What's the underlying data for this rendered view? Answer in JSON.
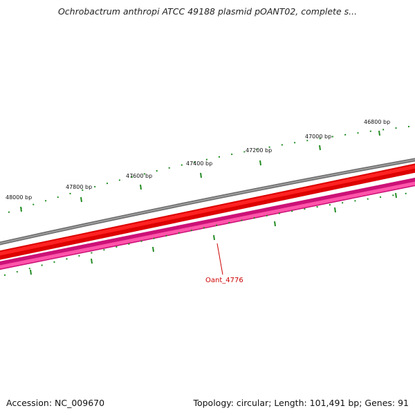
{
  "title": "Ochrobactrum anthropi ATCC 49188 plasmid pOANT02, complete s...",
  "ruler": {
    "labels": [
      "48000 bp",
      "47800 bp",
      "47600 bp",
      "47400 bp",
      "47200 bp",
      "47000 bp",
      "46800 bp"
    ]
  },
  "genes": [
    {
      "label": "Oant_4776"
    }
  ],
  "footer": {
    "accession": "Accession: NC_009670",
    "summary": "Topology: circular; Length: 101,491 bp; Genes: 91"
  },
  "colors": {
    "backbone": "#888888",
    "forward_track": "#ff0000",
    "reverse_track": "#ff3399",
    "ticks": "#228b22",
    "gene_label": "#cc0000"
  }
}
